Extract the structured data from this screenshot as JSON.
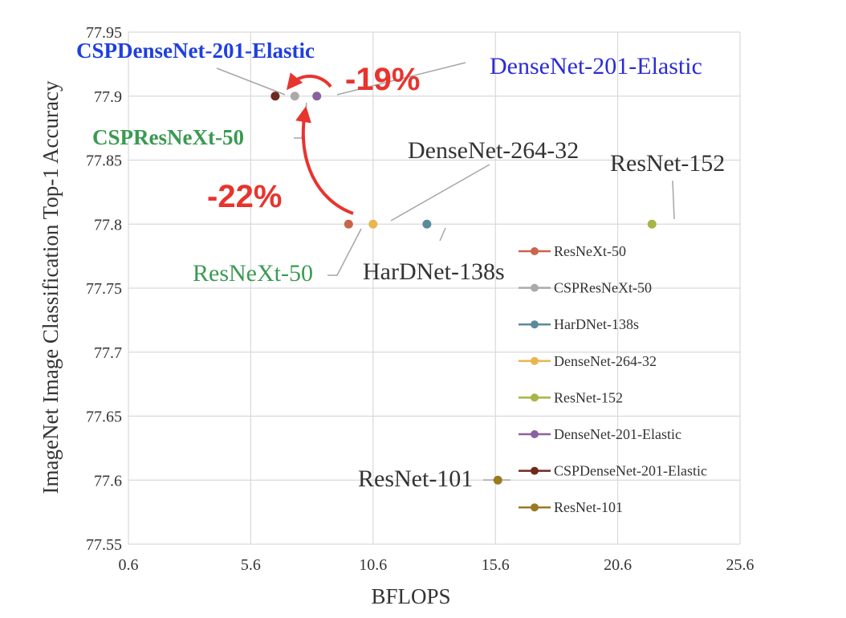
{
  "chart_data": {
    "type": "scatter",
    "title": "",
    "xlabel": "BFLOPS",
    "ylabel": "ImageNet Image Classification Top-1 Accuracy",
    "xlim": [
      0.6,
      25.6
    ],
    "ylim": [
      77.55,
      77.95
    ],
    "x_ticks": [
      "0.6",
      "5.6",
      "10.6",
      "15.6",
      "20.6",
      "25.6"
    ],
    "y_ticks": [
      "77.55",
      "77.6",
      "77.65",
      "77.7",
      "77.75",
      "77.8",
      "77.85",
      "77.9",
      "77.95"
    ],
    "grid": true,
    "legend_position": "right",
    "series": [
      {
        "name": "ResNeXt-50",
        "color": "#c8654a",
        "x": 9.6,
        "y": 77.8
      },
      {
        "name": "CSPResNeXt-50",
        "color": "#aaaaaa",
        "x": 7.4,
        "y": 77.9
      },
      {
        "name": "HarDNet-138s",
        "color": "#5b8a9c",
        "x": 12.8,
        "y": 77.8
      },
      {
        "name": "DenseNet-264-32",
        "color": "#e8b64f",
        "x": 10.6,
        "y": 77.8
      },
      {
        "name": "ResNet-152",
        "color": "#a8b445",
        "x": 22.0,
        "y": 77.8
      },
      {
        "name": "DenseNet-201-Elastic",
        "color": "#8a62a0",
        "x": 8.3,
        "y": 77.9
      },
      {
        "name": "CSPDenseNet-201-Elastic",
        "color": "#6e2a1e",
        "x": 6.6,
        "y": 77.9
      },
      {
        "name": "ResNet-101",
        "color": "#9a7a22",
        "x": 15.7,
        "y": 77.6
      }
    ],
    "annotations": [
      {
        "text": "CSPDenseNet-201-Elastic",
        "color": "#1f3fe0",
        "bold": true
      },
      {
        "text": "DenseNet-201-Elastic",
        "color": "#2b2bd6",
        "bold": false
      },
      {
        "text": "CSPResNeXt-50",
        "color": "#3a9a52",
        "bold": true
      },
      {
        "text": "DenseNet-264-32",
        "color": "#333333",
        "bold": false
      },
      {
        "text": "ResNet-152",
        "color": "#333333",
        "bold": false
      },
      {
        "text": "ResNeXt-50",
        "color": "#3a9a52",
        "bold": false
      },
      {
        "text": "HarDNet-138s",
        "color": "#333333",
        "bold": false
      },
      {
        "text": "ResNet-101",
        "color": "#333333",
        "bold": false
      }
    ],
    "reductions": [
      {
        "text": "-19%",
        "color": "#e8342e"
      },
      {
        "text": "-22%",
        "color": "#e8342e"
      }
    ]
  }
}
